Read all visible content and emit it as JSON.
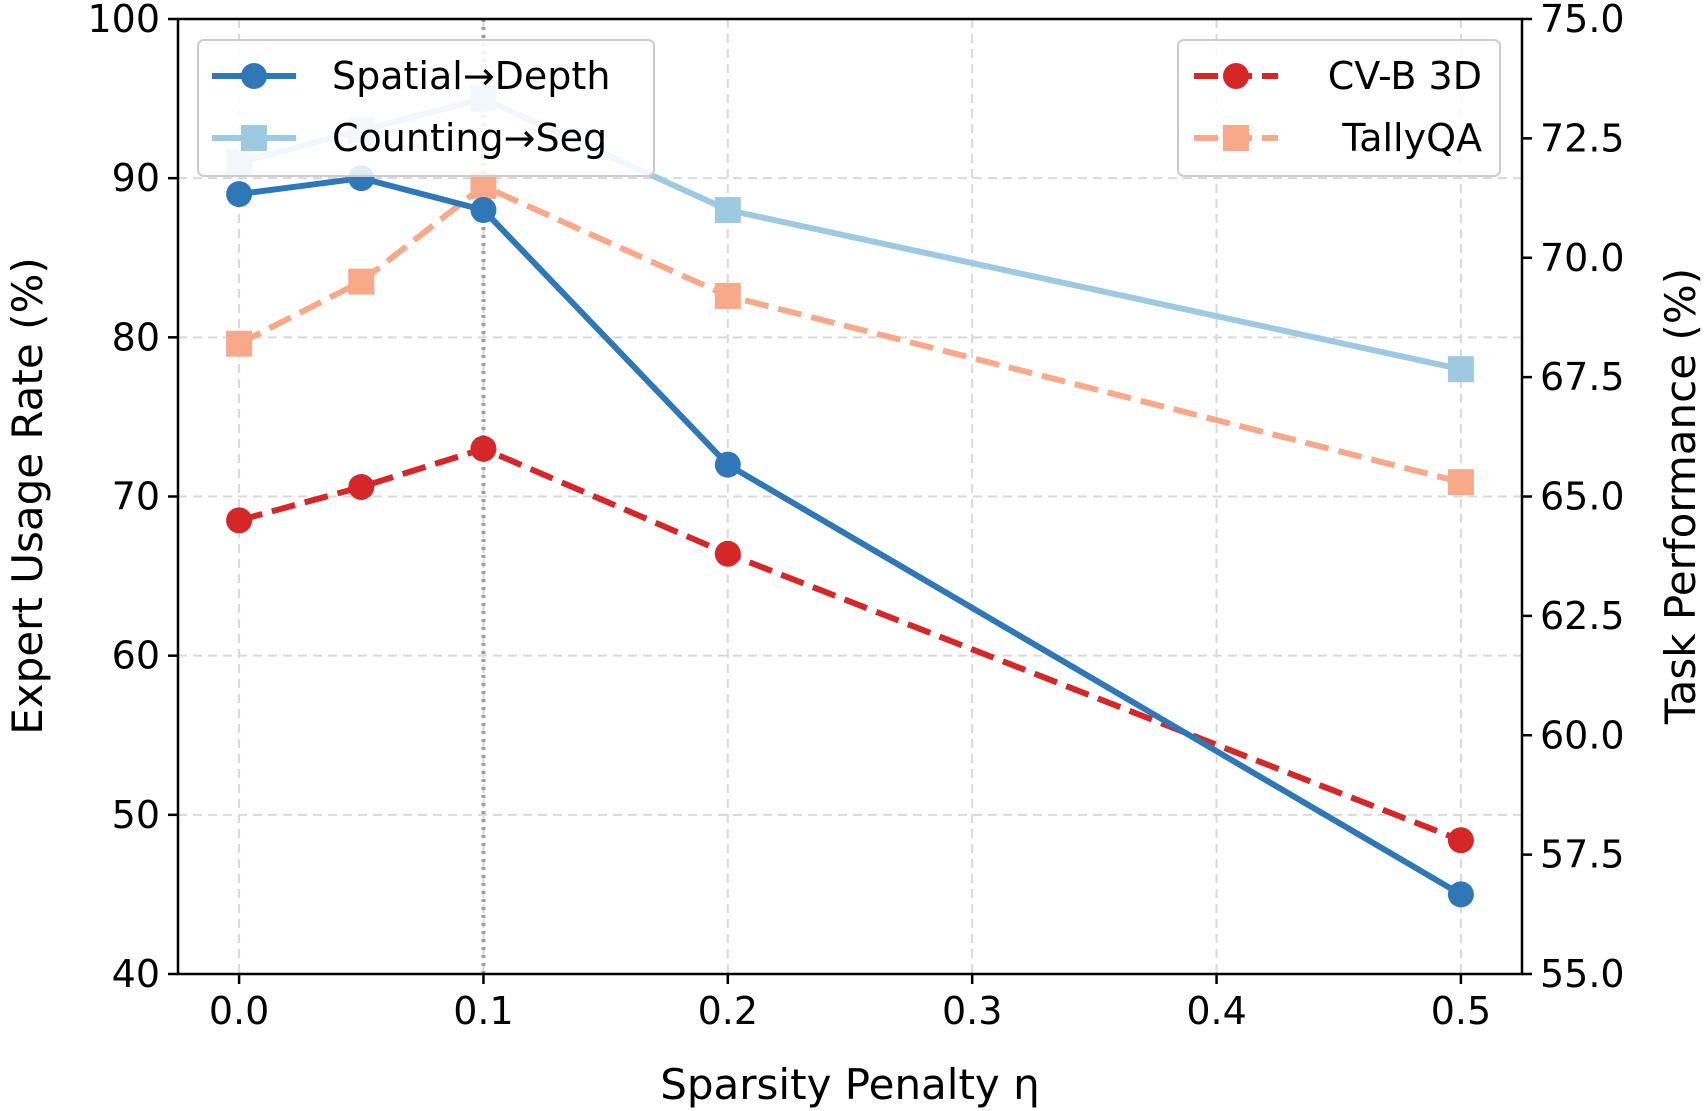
{
  "chart_data": {
    "type": "line",
    "xlabel": "Sparsity Penalty η",
    "ylabel_left": "Expert Usage Rate (%)",
    "ylabel_right": "Task Performance (%)",
    "x_ticks": [
      "0.0",
      "0.1",
      "0.2",
      "0.3",
      "0.4",
      "0.5"
    ],
    "y_left_ticks": [
      "40",
      "50",
      "60",
      "70",
      "80",
      "90",
      "100"
    ],
    "y_right_ticks": [
      "55.0",
      "57.5",
      "60.0",
      "62.5",
      "65.0",
      "67.5",
      "70.0",
      "72.5",
      "75.0"
    ],
    "xlim": [
      -0.025,
      0.525
    ],
    "ylim_left": [
      40,
      100
    ],
    "ylim_right": [
      55,
      75
    ],
    "grid": true,
    "highlight_x": 0.1,
    "x": [
      0.0,
      0.05,
      0.1,
      0.2,
      0.5
    ],
    "series_left": [
      {
        "name": "Spatial→Depth",
        "values": [
          89,
          90,
          88,
          72,
          45
        ],
        "color": "#2e78b7",
        "marker": "circle",
        "dash": "solid"
      },
      {
        "name": "Counting→Seg",
        "values": [
          91,
          93,
          95,
          88,
          78
        ],
        "color": "#9ecae1",
        "marker": "square",
        "dash": "solid"
      }
    ],
    "series_right": [
      {
        "name": "CV-B 3D",
        "values": [
          64.5,
          65.2,
          66.0,
          63.8,
          57.8
        ],
        "color": "#d62728",
        "marker": "circle",
        "dash": "dashed"
      },
      {
        "name": "TallyQA",
        "values": [
          68.2,
          69.5,
          71.5,
          69.2,
          65.3
        ],
        "color": "#f7a98a",
        "marker": "square",
        "dash": "dashed"
      }
    ],
    "legend_left_placement": "top-left",
    "legend_right_placement": "top-right"
  }
}
